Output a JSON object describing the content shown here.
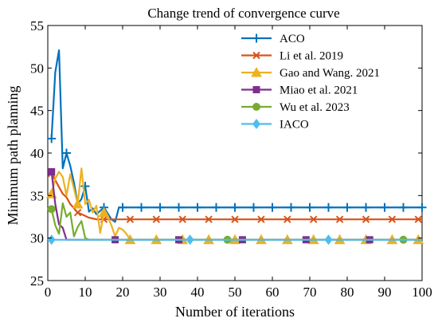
{
  "chart_data": {
    "type": "line",
    "title": "Change trend of convergence curve",
    "xlabel": "Number of iterations",
    "ylabel": "Minimum path planning",
    "xlim": [
      0,
      100
    ],
    "ylim": [
      25,
      55
    ],
    "xticks": [
      0,
      10,
      20,
      30,
      40,
      50,
      60,
      70,
      80,
      90,
      100
    ],
    "yticks": [
      25,
      30,
      35,
      40,
      45,
      50,
      55
    ],
    "grid": false,
    "legend_position": "top-right",
    "series": [
      {
        "name": "ACO",
        "color": "#0072BD",
        "marker": "plus",
        "x": [
          1,
          2,
          3,
          4,
          5,
          6,
          7,
          8,
          9,
          10,
          11,
          12,
          13,
          14,
          15,
          16,
          17,
          18,
          19,
          20,
          22,
          100
        ],
        "y": [
          41.7,
          49.5,
          52.1,
          38.2,
          40.0,
          38.5,
          36.5,
          34.0,
          34.6,
          36.1,
          33.1,
          33.5,
          32.8,
          33.2,
          33.6,
          32.9,
          32.2,
          31.9,
          33.6,
          33.6,
          33.6,
          33.6
        ],
        "marker_x": [
          1,
          5,
          10,
          15,
          20,
          25,
          30,
          35,
          40,
          45,
          50,
          55,
          60,
          65,
          70,
          75,
          80,
          85,
          90,
          95,
          100
        ]
      },
      {
        "name": "Li et al. 2019",
        "color": "#D95319",
        "marker": "x",
        "x": [
          1,
          2,
          3,
          4,
          5,
          6,
          7,
          8,
          9,
          10,
          11,
          12,
          13,
          14,
          15,
          16,
          17,
          18,
          19,
          20,
          100
        ],
        "y": [
          37.6,
          36.8,
          36.0,
          35.2,
          34.8,
          34.0,
          33.5,
          33.0,
          32.8,
          32.6,
          32.4,
          32.3,
          32.2,
          32.2,
          32.2,
          32.2,
          32.2,
          32.2,
          32.2,
          32.2,
          32.2
        ],
        "marker_x": [
          1,
          8,
          15,
          22,
          29,
          36,
          43,
          50,
          57,
          64,
          71,
          78,
          85,
          92,
          99
        ]
      },
      {
        "name": "Gao and Wang. 2021",
        "color": "#EDB120",
        "marker": "triangle",
        "x": [
          1,
          2,
          3,
          4,
          5,
          6,
          7,
          8,
          9,
          10,
          11,
          12,
          13,
          14,
          15,
          16,
          17,
          18,
          19,
          20,
          21,
          22,
          100
        ],
        "y": [
          35.2,
          37.0,
          37.8,
          37.2,
          35.0,
          37.5,
          35.8,
          34.0,
          38.2,
          34.0,
          34.5,
          33.0,
          33.8,
          30.6,
          33.0,
          32.5,
          31.5,
          30.2,
          31.2,
          31.0,
          30.5,
          29.8,
          29.8
        ],
        "marker_x": [
          1,
          8,
          15,
          22,
          29,
          36,
          43,
          50,
          57,
          64,
          71,
          78,
          85,
          92,
          99
        ]
      },
      {
        "name": "Miao et al. 2021",
        "color": "#7E2F8E",
        "marker": "square",
        "x": [
          1,
          2,
          3,
          4,
          5,
          100
        ],
        "y": [
          37.8,
          34.0,
          31.6,
          31.2,
          29.8,
          29.8
        ],
        "marker_x": [
          1,
          18,
          35,
          52,
          69,
          86
        ]
      },
      {
        "name": "Wu et al. 2023",
        "color": "#77AC30",
        "marker": "circle",
        "x": [
          1,
          2,
          3,
          4,
          5,
          6,
          7,
          8,
          9,
          10,
          11,
          12,
          100
        ],
        "y": [
          33.4,
          31.5,
          30.5,
          34.1,
          32.5,
          33.0,
          30.2,
          31.3,
          32.0,
          30.0,
          29.8,
          29.8,
          29.8
        ],
        "marker_x": [
          1,
          48,
          95
        ]
      },
      {
        "name": "IACO",
        "color": "#4DBEEE",
        "marker": "diamond",
        "x": [
          0,
          100
        ],
        "y": [
          29.8,
          29.8
        ],
        "marker_x": [
          1,
          38,
          75
        ]
      }
    ]
  }
}
